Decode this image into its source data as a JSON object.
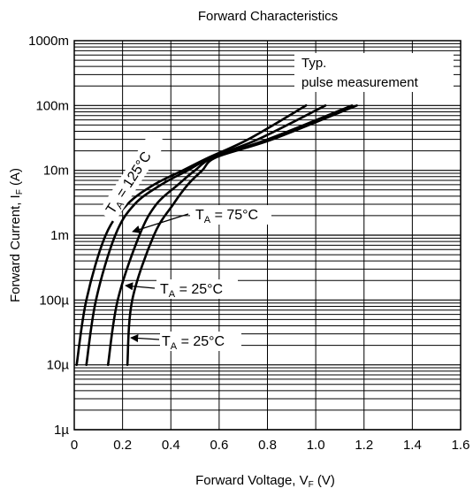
{
  "chart_data": {
    "type": "line",
    "title": "Forward Characteristics",
    "xlabel": {
      "main": "Forward Voltage, V",
      "sub": "F",
      "unit": " (V)"
    },
    "ylabel": {
      "main": "Forward Current, I",
      "sub": "F",
      "unit": " (A)"
    },
    "x_scale": "linear",
    "y_scale": "log",
    "xlim": [
      0,
      1.6
    ],
    "ylim": [
      1e-06,
      1
    ],
    "grid": true,
    "x_ticks": [
      {
        "value": 0,
        "label": "0"
      },
      {
        "value": 0.2,
        "label": "0.2"
      },
      {
        "value": 0.4,
        "label": "0.4"
      },
      {
        "value": 0.6,
        "label": "0.6"
      },
      {
        "value": 0.8,
        "label": "0.8"
      },
      {
        "value": 1.0,
        "label": "1.0"
      },
      {
        "value": 1.2,
        "label": "1.2"
      },
      {
        "value": 1.4,
        "label": "1.4"
      },
      {
        "value": 1.6,
        "label": "1.6"
      }
    ],
    "y_ticks": [
      {
        "value": 1,
        "label": "1000m"
      },
      {
        "value": 0.1,
        "label": "100m"
      },
      {
        "value": 0.01,
        "label": "10m"
      },
      {
        "value": 0.001,
        "label": "1m"
      },
      {
        "value": 0.0001,
        "label": "100µ"
      },
      {
        "value": 1e-05,
        "label": "10µ"
      },
      {
        "value": 1e-06,
        "label": "1µ"
      }
    ],
    "series": [
      {
        "x": [
          0.01,
          0.05,
          0.13,
          0.22,
          0.33,
          0.45,
          0.56,
          0.72,
          0.96
        ],
        "y": [
          1e-05,
          0.0001,
          0.001,
          0.003,
          0.006,
          0.01,
          0.016,
          0.03,
          0.1
        ]
      },
      {
        "x": [
          0.05,
          0.09,
          0.17,
          0.25,
          0.36,
          0.47,
          0.57,
          0.76,
          1.04
        ],
        "y": [
          1e-05,
          0.0001,
          0.001,
          0.003,
          0.006,
          0.01,
          0.016,
          0.03,
          0.1
        ]
      },
      {
        "x": [
          0.14,
          0.18,
          0.27,
          0.34,
          0.43,
          0.5,
          0.58,
          0.8,
          1.15
        ],
        "y": [
          1e-05,
          0.0001,
          0.001,
          0.003,
          0.006,
          0.01,
          0.016,
          0.03,
          0.1
        ]
      },
      {
        "x": [
          0.22,
          0.24,
          0.33,
          0.41,
          0.47,
          0.53,
          0.59,
          0.82,
          1.17
        ],
        "y": [
          1e-05,
          0.0001,
          0.001,
          0.003,
          0.006,
          0.01,
          0.016,
          0.03,
          0.1
        ]
      }
    ],
    "annotations": [
      {
        "lines": [
          "Typ.",
          "pulse measurement"
        ]
      },
      {
        "main": "T",
        "sub": "A",
        "rest": " = 125°C"
      },
      {
        "main": "T",
        "sub": "A",
        "rest": " = 75°C"
      },
      {
        "main": "T",
        "sub": "A",
        "rest": " = 25°C"
      },
      {
        "main": "T",
        "sub": "A",
        "rest": " = 25°C"
      }
    ]
  }
}
